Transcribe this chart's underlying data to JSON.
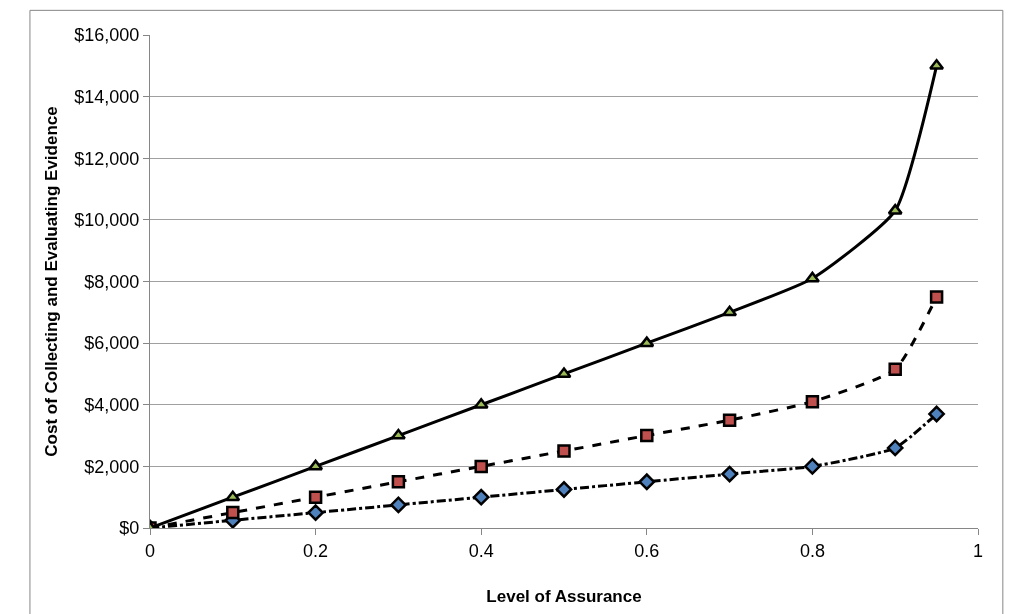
{
  "chart_data": {
    "type": "line",
    "xlabel": "Level of Assurance",
    "ylabel": "Cost of Collecting and Evaluating Evidence",
    "x": [
      0,
      0.1,
      0.2,
      0.3,
      0.4,
      0.5,
      0.6,
      0.7,
      0.8,
      0.9,
      0.95
    ],
    "series": [
      {
        "color": "#4f81bd",
        "marker": "diamond",
        "line_style": "dashdot",
        "values": [
          0,
          250,
          500,
          750,
          1000,
          1250,
          1500,
          1750,
          2000,
          2600,
          3700
        ]
      },
      {
        "color": "#c0504d",
        "marker": "square",
        "line_style": "dashed",
        "values": [
          0,
          500,
          1000,
          1500,
          2000,
          2500,
          3000,
          3500,
          4100,
          5150,
          7500
        ]
      },
      {
        "color": "#9bbb59",
        "marker": "triangle",
        "line_style": "solid",
        "values": [
          0,
          1000,
          2000,
          3000,
          4000,
          5000,
          6000,
          7000,
          8100,
          10300,
          15000
        ]
      }
    ],
    "xlim": [
      0,
      1
    ],
    "xticks": [
      0,
      0.2,
      0.4,
      0.6,
      0.8,
      1
    ],
    "ylim": [
      0,
      16000
    ],
    "yticks": [
      {
        "value": 0,
        "label": "$0"
      },
      {
        "value": 2000,
        "label": "$2,000"
      },
      {
        "value": 4000,
        "label": "$4,000"
      },
      {
        "value": 6000,
        "label": "$6,000"
      },
      {
        "value": 8000,
        "label": "$8,000"
      },
      {
        "value": 10000,
        "label": "$10,000"
      },
      {
        "value": 12000,
        "label": "$12,000"
      },
      {
        "value": 14000,
        "label": "$14,000"
      },
      {
        "value": 16000,
        "label": "$16,000"
      }
    ],
    "grid": "y"
  }
}
